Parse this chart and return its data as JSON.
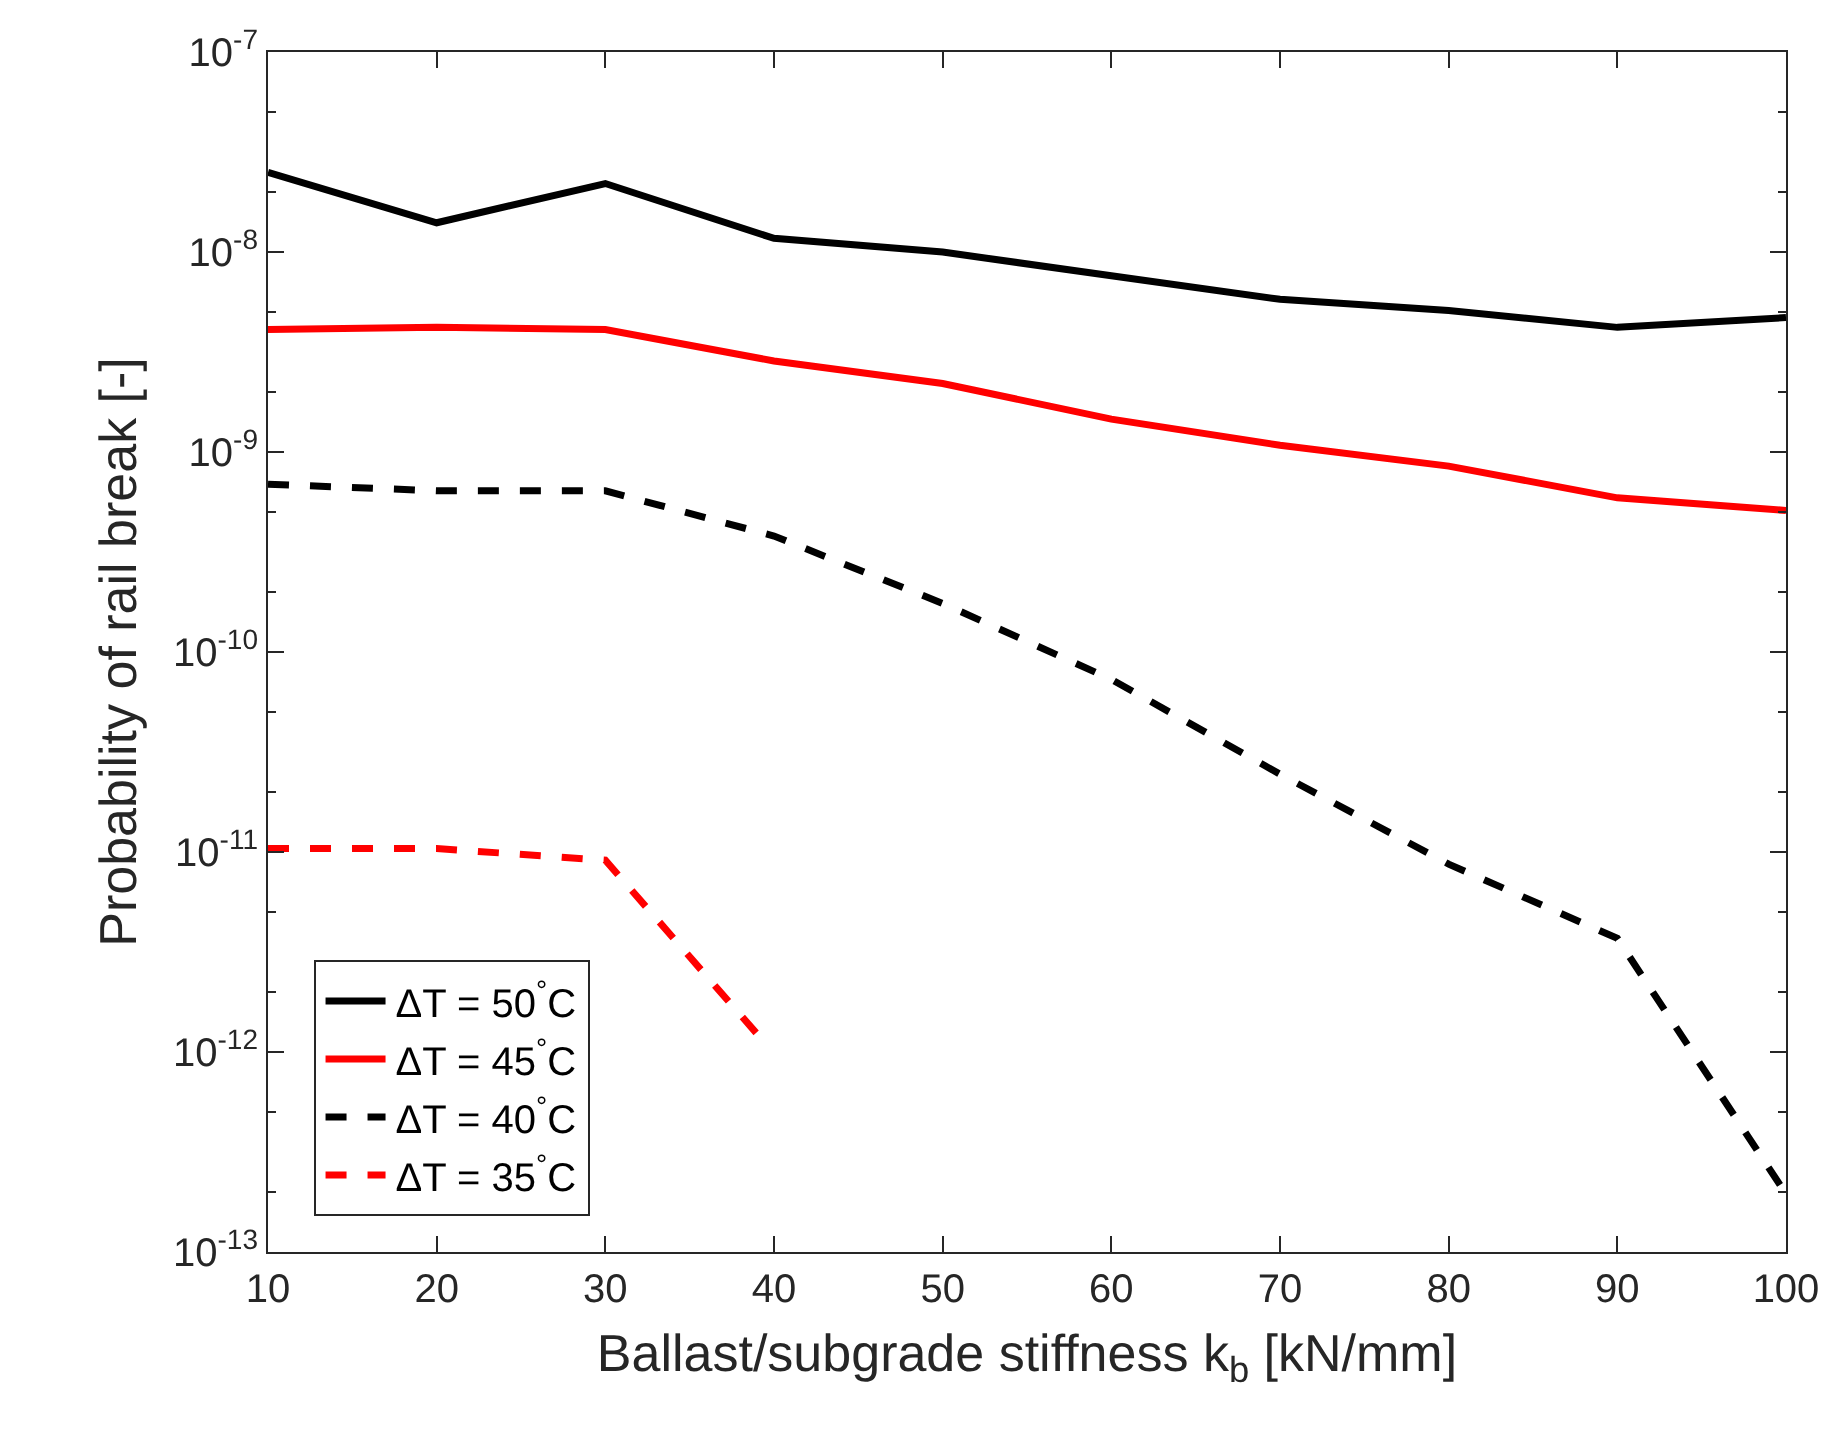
{
  "chart_data": {
    "type": "line",
    "xlabel": "Ballast/subgrade stiffness k$_{b}$ [kN/mm]",
    "ylabel": "Probability of rail break [-]",
    "x": [
      10,
      20,
      30,
      40,
      50,
      60,
      70,
      80,
      90,
      100
    ],
    "series": [
      {
        "name": "ΔT = 50$^{°}$C",
        "color": "#000000",
        "line_style": "solid",
        "values": [
          2.5e-08,
          1.4e-08,
          2.2e-08,
          1.17e-08,
          1e-08,
          7.6e-09,
          5.8e-09,
          5.1e-09,
          4.2e-09,
          4.7e-09
        ]
      },
      {
        "name": "ΔT = 45$^{°}$C",
        "color": "#ff0000",
        "line_style": "solid",
        "values": [
          4.1e-09,
          4.2e-09,
          4.1e-09,
          2.85e-09,
          2.2e-09,
          1.46e-09,
          1.08e-09,
          8.5e-10,
          5.9e-10,
          5.1e-10
        ]
      },
      {
        "name": "ΔT = 40$^{°}$C",
        "color": "#000000",
        "line_style": "dashed",
        "values": [
          6.9e-10,
          6.4e-10,
          6.4e-10,
          3.8e-10,
          1.75e-10,
          7.3e-11,
          2.45e-11,
          8.7e-12,
          3.7e-12,
          1.95e-13
        ]
      },
      {
        "name": "ΔT = 35$^{°}$C",
        "color": "#ff0000",
        "line_style": "dashed",
        "x": [
          10,
          20,
          30,
          39
        ],
        "values": [
          1.04e-11,
          1.04e-11,
          9.1e-12,
          1.23e-12
        ]
      }
    ],
    "log": "y",
    "xlim": [
      10,
      100
    ],
    "xticks": [
      10,
      20,
      30,
      40,
      50,
      60,
      70,
      80,
      90,
      100
    ],
    "ylim": [
      1e-13,
      1e-07
    ],
    "yticks": [
      {
        "value": 1e-13,
        "label": "10$^{-13}$"
      },
      {
        "value": 1e-12,
        "label": "10$^{-12}$"
      },
      {
        "value": 1e-11,
        "label": "10$^{-11}$"
      },
      {
        "value": 1e-10,
        "label": "10$^{-10}$"
      },
      {
        "value": 1e-09,
        "label": "10$^{-9}$"
      },
      {
        "value": 1e-08,
        "label": "10$^{-8}$"
      },
      {
        "value": 1e-07,
        "label": "10$^{-7}$"
      }
    ],
    "legend": "bottom left",
    "marker": "none"
  }
}
